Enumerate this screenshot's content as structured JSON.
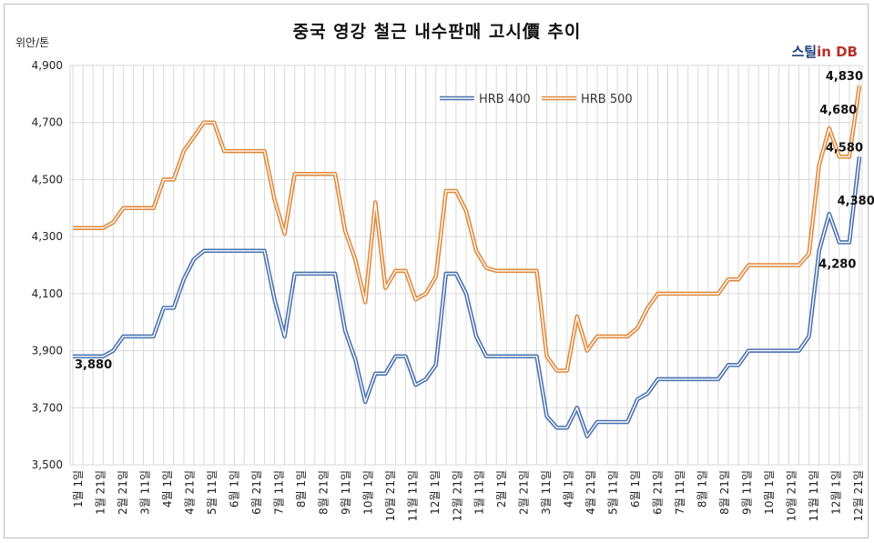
{
  "chart_data": {
    "type": "line",
    "title": "중국 영강 철근 내수판매 고시價 추이",
    "ylabel": "위안/톤",
    "ylim": [
      3500,
      4900
    ],
    "yticks": [
      "3,500",
      "3,700",
      "3,900",
      "4,100",
      "4,300",
      "4,500",
      "4,700",
      "4,900"
    ],
    "grid": true,
    "legend_position": "top-center",
    "x_labels": [
      "1월 1일",
      "1월 21일",
      "2월 21일",
      "3월 11일",
      "4월 1일",
      "4월 21일",
      "5월 11일",
      "6월 1일",
      "6월 21일",
      "7월 11일",
      "8월 1일",
      "8월 21일",
      "9월 11일",
      "10월 1일",
      "10월 21일",
      "11월 11일",
      "12월 1일",
      "12월 21일",
      "1월 11일",
      "2월 1일",
      "2월 21일",
      "3월 11일",
      "4월 1일",
      "4월 21일",
      "5월 11일",
      "6월 1일",
      "6월 21일",
      "7월 11일",
      "8월 1일",
      "8월 21일",
      "9월 11일",
      "10월 1일",
      "10월 21일",
      "11월 11일",
      "12월 1일",
      "12월 21일"
    ],
    "series": [
      {
        "name": "HRB 400",
        "color": "#4a72b0",
        "values": [
          3880,
          3880,
          3880,
          3880,
          3900,
          3950,
          3950,
          3950,
          3950,
          4050,
          4050,
          4150,
          4220,
          4250,
          4250,
          4250,
          4250,
          4250,
          4250,
          4250,
          4080,
          3950,
          4170,
          4170,
          4170,
          4170,
          4170,
          3970,
          3870,
          3720,
          3820,
          3820,
          3880,
          3880,
          3780,
          3800,
          3850,
          4170,
          4170,
          4100,
          3950,
          3880,
          3880,
          3880,
          3880,
          3880,
          3880,
          3670,
          3630,
          3630,
          3700,
          3600,
          3650,
          3650,
          3650,
          3650,
          3730,
          3750,
          3800,
          3800,
          3800,
          3800,
          3800,
          3800,
          3800,
          3850,
          3850,
          3900,
          3900,
          3900,
          3900,
          3900,
          3900,
          3950,
          4250,
          4380,
          4280,
          4280,
          4580
        ]
      },
      {
        "name": "HRB 500",
        "color": "#e0883a",
        "values": [
          4330,
          4330,
          4330,
          4330,
          4350,
          4400,
          4400,
          4400,
          4400,
          4500,
          4500,
          4600,
          4650,
          4700,
          4700,
          4600,
          4600,
          4600,
          4600,
          4600,
          4430,
          4310,
          4520,
          4520,
          4520,
          4520,
          4520,
          4320,
          4220,
          4070,
          4420,
          4120,
          4180,
          4180,
          4080,
          4100,
          4160,
          4460,
          4460,
          4390,
          4250,
          4190,
          4180,
          4180,
          4180,
          4180,
          4180,
          3880,
          3830,
          3830,
          4020,
          3900,
          3950,
          3950,
          3950,
          3950,
          3980,
          4050,
          4100,
          4100,
          4100,
          4100,
          4100,
          4100,
          4100,
          4150,
          4150,
          4200,
          4200,
          4200,
          4200,
          4200,
          4200,
          4240,
          4550,
          4680,
          4580,
          4580,
          4830
        ]
      }
    ],
    "annotations": [
      {
        "text": "3,880",
        "series": "HRB 400",
        "index": 0
      },
      {
        "text": "4,380",
        "series": "HRB 400",
        "index": 75
      },
      {
        "text": "4,280",
        "series": "HRB 400",
        "index": 76
      },
      {
        "text": "4,580",
        "series": "HRB 400",
        "index": 78
      },
      {
        "text": "4,680",
        "series": "HRB 500",
        "index": 75
      },
      {
        "text": "4,830",
        "series": "HRB 500",
        "index": 78
      }
    ]
  },
  "brand": {
    "part1": "스틸",
    "part2": "in DB"
  }
}
